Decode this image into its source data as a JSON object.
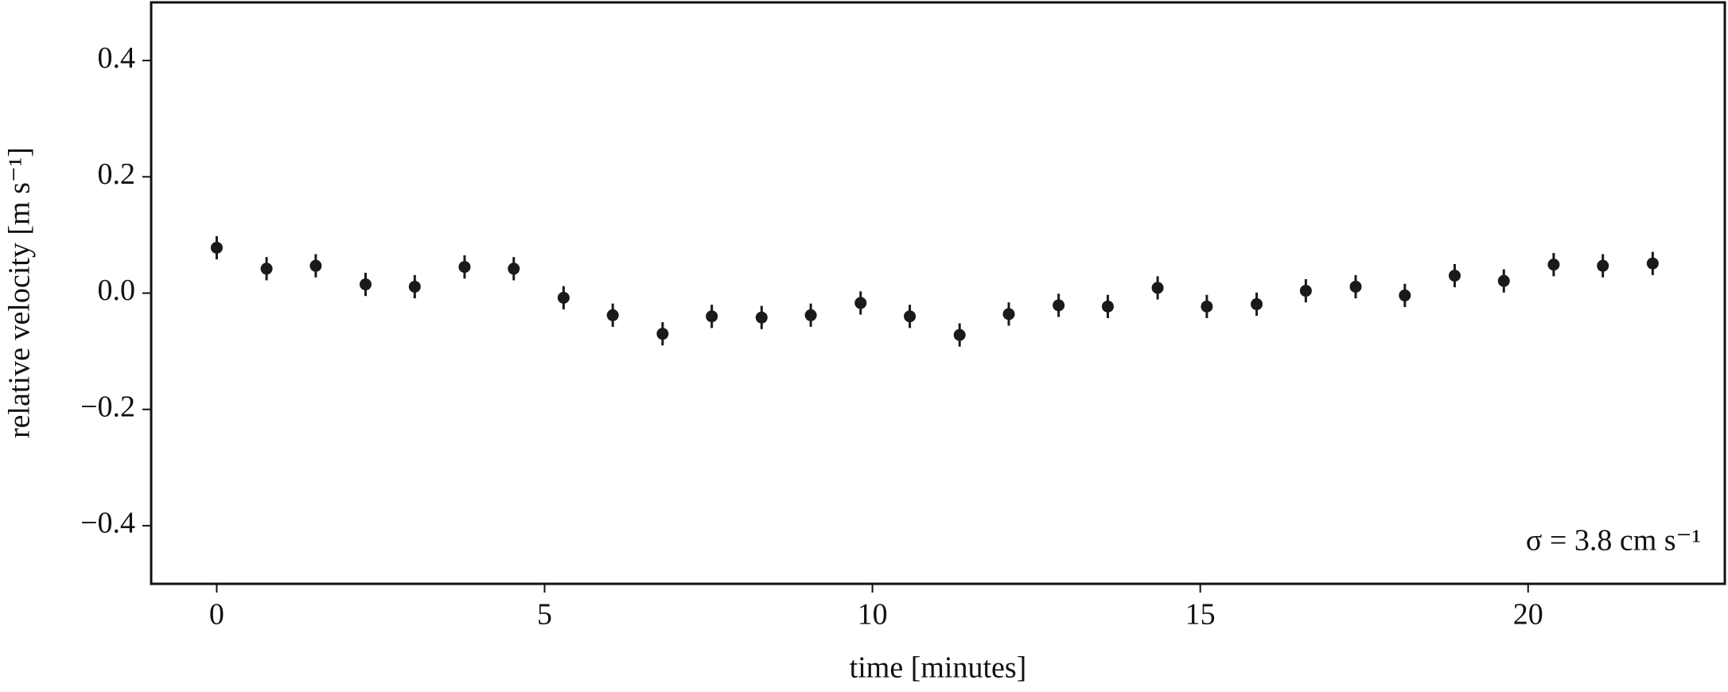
{
  "chart_data": {
    "type": "errorbar",
    "xlabel": "time [minutes]",
    "ylabel": "relative velocity [m s⁻¹]",
    "annotation": "σ = 3.8 cm s⁻¹",
    "color": "#1a1a1a",
    "x": [
      0,
      0.76,
      1.51,
      2.27,
      3.02,
      3.78,
      4.53,
      5.29,
      6.04,
      6.8,
      7.55,
      8.31,
      9.06,
      9.82,
      10.57,
      11.33,
      12.08,
      12.84,
      13.59,
      14.35,
      15.1,
      15.86,
      16.61,
      17.37,
      18.12,
      18.88,
      19.63,
      20.39,
      21.14,
      21.9
    ],
    "values": [
      0.078,
      0.042,
      0.047,
      0.015,
      0.011,
      0.045,
      0.042,
      -0.008,
      -0.038,
      -0.07,
      -0.04,
      -0.042,
      -0.038,
      -0.017,
      -0.04,
      -0.072,
      -0.036,
      -0.021,
      -0.023,
      0.009,
      -0.023,
      -0.019,
      0.004,
      0.011,
      -0.004,
      0.03,
      0.021,
      0.049,
      0.047,
      0.051
    ],
    "errors": [
      0.02,
      0.02,
      0.02,
      0.02,
      0.02,
      0.02,
      0.02,
      0.02,
      0.02,
      0.02,
      0.02,
      0.02,
      0.02,
      0.02,
      0.02,
      0.02,
      0.02,
      0.02,
      0.02,
      0.02,
      0.02,
      0.02,
      0.02,
      0.02,
      0.02,
      0.02,
      0.02,
      0.02,
      0.02,
      0.02
    ],
    "xlim": [
      -1,
      23
    ],
    "ylim": [
      -0.5,
      0.5
    ],
    "xticks": [
      0,
      5,
      10,
      15,
      20
    ],
    "yticks": [
      {
        "value": -0.4,
        "label": "−0.4"
      },
      {
        "value": -0.2,
        "label": "−0.2"
      },
      {
        "value": 0,
        "label": "0.0"
      },
      0.2,
      0.4
    ]
  }
}
